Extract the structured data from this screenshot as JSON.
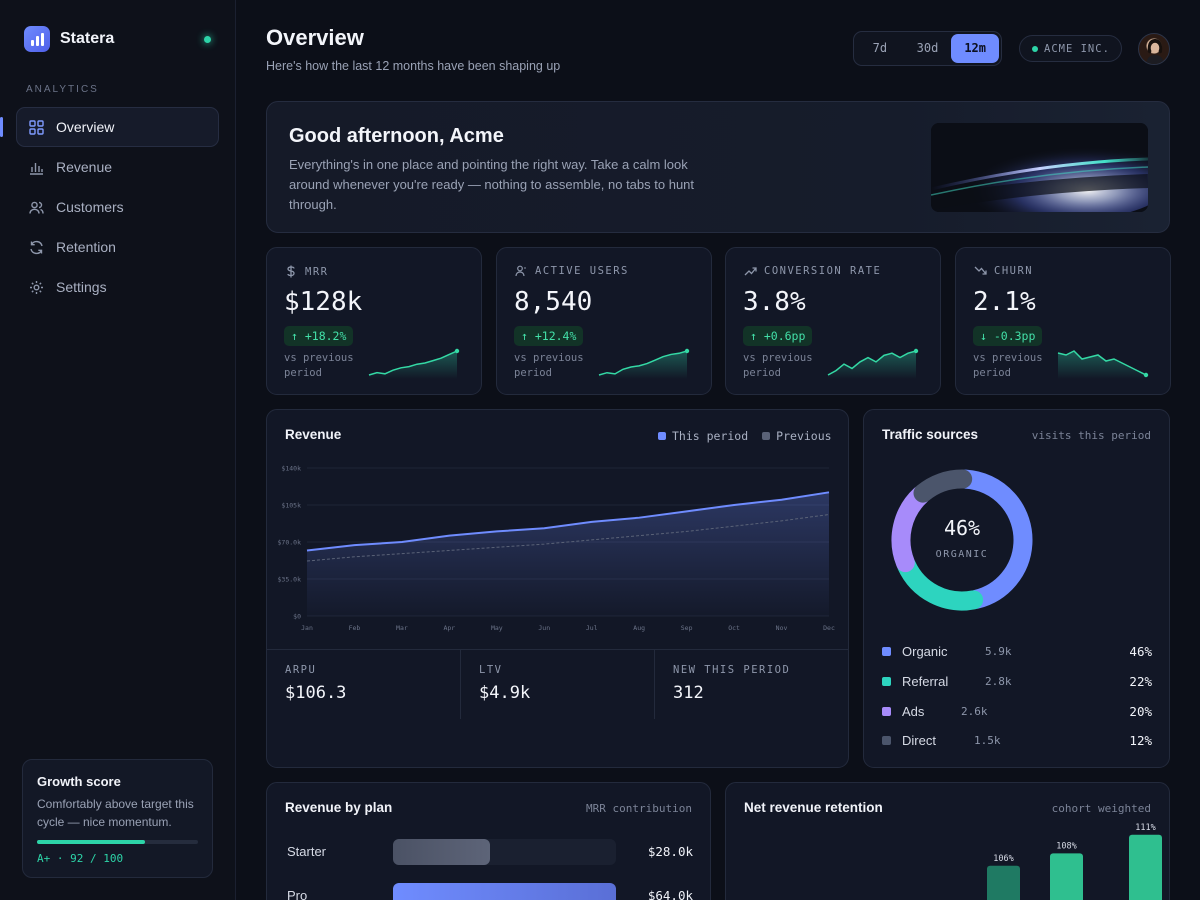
{
  "app": {
    "name": "Statera"
  },
  "sidebar": {
    "section": "ANALYTICS",
    "items": [
      {
        "label": "Overview",
        "icon": "grid-icon",
        "active": true
      },
      {
        "label": "Revenue",
        "icon": "bar-chart-icon"
      },
      {
        "label": "Customers",
        "icon": "users-icon"
      },
      {
        "label": "Retention",
        "icon": "refresh-icon"
      },
      {
        "label": "Settings",
        "icon": "gear-icon"
      }
    ],
    "growth": {
      "title": "Growth score",
      "text": "Comfortably above target this cycle — nice momentum.",
      "score_label": "A+ · 92 / 100",
      "progress": 0.67
    }
  },
  "header": {
    "title": "Overview",
    "subtitle": "Here's how the last 12 months have been shaping up",
    "ranges": [
      "7d",
      "30d",
      "12m"
    ],
    "selected_range": "12m",
    "org": "ACME INC."
  },
  "hero": {
    "greeting": "Good afternoon, Acme",
    "text": "Everything's in one place and pointing the right way. Take a calm look around whenever you're ready — nothing to assemble, no tabs to hunt through."
  },
  "kpis": [
    {
      "label": "MRR",
      "icon": "dollar-icon",
      "value": "$128k",
      "delta": "↑ +18.2%",
      "vs": "vs previous period",
      "spark": [
        2,
        3,
        2.5,
        4,
        5,
        5.5,
        6.5,
        7,
        8,
        9,
        10.5,
        12
      ],
      "positive": true
    },
    {
      "label": "ACTIVE USERS",
      "icon": "user-icon",
      "value": "8,540",
      "delta": "↑ +12.4%",
      "vs": "vs previous period",
      "spark": [
        2,
        3,
        2.5,
        4.5,
        5.5,
        6,
        7,
        8.5,
        10,
        11,
        11.5,
        12.5
      ],
      "positive": true
    },
    {
      "label": "CONVERSION RATE",
      "icon": "trend-up-icon",
      "value": "3.8%",
      "delta": "↑ +0.6pp",
      "vs": "vs previous period",
      "spark": [
        2,
        4,
        7,
        5,
        8,
        10,
        8,
        11,
        12,
        10,
        12,
        13
      ],
      "positive": true
    },
    {
      "label": "CHURN",
      "icon": "trend-down-icon",
      "value": "2.1%",
      "delta": "↓ -0.3pp",
      "vs": "vs previous period",
      "spark": [
        12,
        11,
        13,
        9,
        10,
        11,
        8,
        9,
        7,
        5,
        3,
        1
      ],
      "positive": true
    }
  ],
  "revenue": {
    "title": "Revenue",
    "legend": [
      "This period",
      "Previous"
    ],
    "stats": [
      {
        "label": "ARPU",
        "value": "$106.3"
      },
      {
        "label": "LTV",
        "value": "$4.9k"
      },
      {
        "label": "NEW THIS PERIOD",
        "value": "312"
      }
    ]
  },
  "traffic": {
    "title": "Traffic sources",
    "note": "visits this period",
    "center_value": "46%",
    "center_label": "ORGANIC",
    "sources": [
      {
        "name": "Organic",
        "count": "5.9k",
        "pct": "46%",
        "value": 46,
        "color": "#6f8cff"
      },
      {
        "name": "Referral",
        "count": "2.8k",
        "pct": "22%",
        "value": 22,
        "color": "#2dd4bf"
      },
      {
        "name": "Ads",
        "count": "2.6k",
        "pct": "20%",
        "value": 20,
        "color": "#a78bfa"
      },
      {
        "name": "Direct",
        "count": "1.5k",
        "pct": "12%",
        "value": 12,
        "color": "#4b556b"
      }
    ]
  },
  "plans": {
    "title": "Revenue by plan",
    "note": "MRR contribution",
    "rows": [
      {
        "name": "Starter",
        "amount": "$28.0k",
        "value": 28.0
      },
      {
        "name": "Pro",
        "amount": "$64.0k",
        "value": 64.0
      }
    ]
  },
  "nrr": {
    "title": "Net revenue retention",
    "note": "cohort weighted",
    "bars": [
      {
        "label": "106%",
        "value": 106
      },
      {
        "label": "108%",
        "value": 108
      },
      {
        "label": "111%",
        "value": 111
      }
    ]
  },
  "chart_data": {
    "type": "area",
    "categories": [
      "Jan",
      "Feb",
      "Mar",
      "Apr",
      "May",
      "Jun",
      "Jul",
      "Aug",
      "Sep",
      "Oct",
      "Nov",
      "Dec"
    ],
    "y_ticks": [
      "$0",
      "$35.0k",
      "$70.0k",
      "$105k",
      "$140k"
    ],
    "ylim": [
      0,
      140
    ],
    "series": [
      {
        "name": "This period",
        "values": [
          62,
          67,
          70,
          76,
          80,
          83,
          89,
          93,
          99,
          105,
          110,
          117
        ],
        "color": "#6f8cff"
      },
      {
        "name": "Previous",
        "values": [
          52,
          56,
          59,
          62,
          65,
          68,
          72,
          76,
          80,
          85,
          90,
          96
        ],
        "color": "#5a6277"
      }
    ],
    "title": "Revenue",
    "xlabel": "",
    "ylabel": "",
    "grid": true,
    "legend": "top-right"
  }
}
